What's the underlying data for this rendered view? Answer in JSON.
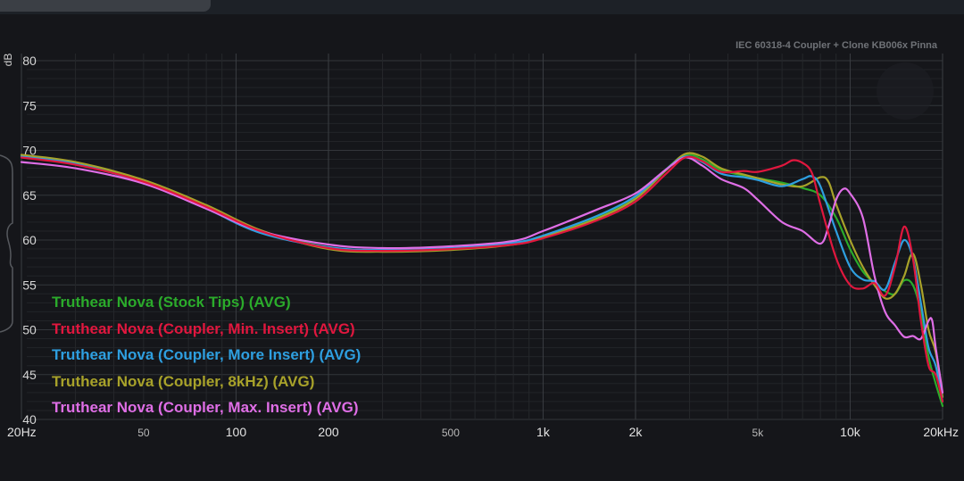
{
  "chart_data": {
    "type": "line",
    "title": "IEC 60318-4 Coupler + Clone KB006x Pinna",
    "ylabel": "dB",
    "xlabel": "",
    "x_scale": "log",
    "xlim": [
      20,
      20000
    ],
    "ylim": [
      40,
      80
    ],
    "grid": true,
    "legend_position": "bottom-left",
    "x_ticks": [
      {
        "value": 20,
        "label": "20Hz"
      },
      {
        "value": 50,
        "label": "50"
      },
      {
        "value": 100,
        "label": "100"
      },
      {
        "value": 200,
        "label": "200"
      },
      {
        "value": 500,
        "label": "500"
      },
      {
        "value": 1000,
        "label": "1k"
      },
      {
        "value": 2000,
        "label": "2k"
      },
      {
        "value": 5000,
        "label": "5k"
      },
      {
        "value": 10000,
        "label": "10k"
      },
      {
        "value": 20000,
        "label": "20kHz"
      }
    ],
    "y_ticks": [
      80,
      75,
      70,
      65,
      60,
      55,
      50,
      45,
      40
    ],
    "series": [
      {
        "name": "Truthear Nova (Stock Tips) (AVG)",
        "color": "#2bab2b",
        "points": [
          [
            20,
            69.4
          ],
          [
            30,
            68.6
          ],
          [
            50,
            66.6
          ],
          [
            80,
            63.8
          ],
          [
            120,
            61.0
          ],
          [
            200,
            59.2
          ],
          [
            300,
            58.8
          ],
          [
            500,
            59.0
          ],
          [
            800,
            59.6
          ],
          [
            1000,
            60.4
          ],
          [
            1500,
            62.6
          ],
          [
            2000,
            64.8
          ],
          [
            2500,
            67.8
          ],
          [
            2900,
            69.5
          ],
          [
            3300,
            69.0
          ],
          [
            3800,
            67.8
          ],
          [
            4500,
            67.2
          ],
          [
            5000,
            66.9
          ],
          [
            6000,
            66.4
          ],
          [
            7000,
            65.8
          ],
          [
            8000,
            65.0
          ],
          [
            9000,
            62.5
          ],
          [
            10000,
            59.0
          ],
          [
            11000,
            56.5
          ],
          [
            12000,
            55.2
          ],
          [
            13000,
            54.3
          ],
          [
            14000,
            54.0
          ],
          [
            15000,
            55.5
          ],
          [
            16000,
            55.0
          ],
          [
            17000,
            52.0
          ],
          [
            18000,
            47.0
          ],
          [
            19000,
            44.0
          ],
          [
            20000,
            41.5
          ]
        ]
      },
      {
        "name": "Truthear Nova (Coupler, Min. Insert) (AVG)",
        "color": "#e0173e",
        "points": [
          [
            20,
            69.2
          ],
          [
            30,
            68.4
          ],
          [
            50,
            66.5
          ],
          [
            80,
            63.7
          ],
          [
            120,
            61.0
          ],
          [
            200,
            59.1
          ],
          [
            300,
            58.8
          ],
          [
            500,
            59.0
          ],
          [
            800,
            59.5
          ],
          [
            1000,
            60.2
          ],
          [
            1500,
            62.2
          ],
          [
            2000,
            64.3
          ],
          [
            2500,
            67.3
          ],
          [
            2900,
            69.2
          ],
          [
            3300,
            68.8
          ],
          [
            3800,
            67.6
          ],
          [
            4500,
            67.7
          ],
          [
            5000,
            67.6
          ],
          [
            6000,
            68.3
          ],
          [
            6500,
            68.9
          ],
          [
            7000,
            68.6
          ],
          [
            7500,
            67.5
          ],
          [
            8000,
            64.0
          ],
          [
            9000,
            58.0
          ],
          [
            10000,
            55.0
          ],
          [
            11000,
            54.6
          ],
          [
            12000,
            55.2
          ],
          [
            13000,
            53.8
          ],
          [
            14000,
            57.0
          ],
          [
            15000,
            61.5
          ],
          [
            16000,
            58.0
          ],
          [
            17000,
            51.0
          ],
          [
            18000,
            46.0
          ],
          [
            19000,
            45.0
          ],
          [
            20000,
            42.0
          ]
        ]
      },
      {
        "name": "Truthear Nova (Coupler, More Insert) (AVG)",
        "color": "#2e9fe0",
        "points": [
          [
            20,
            69.3
          ],
          [
            30,
            68.5
          ],
          [
            50,
            66.4
          ],
          [
            80,
            63.5
          ],
          [
            120,
            60.8
          ],
          [
            200,
            59.2
          ],
          [
            300,
            58.9
          ],
          [
            500,
            59.1
          ],
          [
            800,
            59.7
          ],
          [
            1000,
            60.5
          ],
          [
            1500,
            62.7
          ],
          [
            2000,
            64.9
          ],
          [
            2500,
            67.8
          ],
          [
            2900,
            69.3
          ],
          [
            3300,
            68.7
          ],
          [
            3800,
            67.4
          ],
          [
            4500,
            67.0
          ],
          [
            5000,
            66.7
          ],
          [
            6000,
            66.0
          ],
          [
            7000,
            66.8
          ],
          [
            7500,
            67.1
          ],
          [
            8000,
            66.0
          ],
          [
            9000,
            61.0
          ],
          [
            10000,
            57.0
          ],
          [
            11000,
            55.6
          ],
          [
            12000,
            55.4
          ],
          [
            13000,
            54.5
          ],
          [
            14000,
            57.5
          ],
          [
            15000,
            60.0
          ],
          [
            16000,
            58.0
          ],
          [
            17000,
            53.0
          ],
          [
            18000,
            48.0
          ],
          [
            19000,
            46.0
          ],
          [
            20000,
            42.0
          ]
        ]
      },
      {
        "name": "Truthear Nova (Coupler, 8kHz) (AVG)",
        "color": "#a8a22a",
        "points": [
          [
            20,
            69.5
          ],
          [
            30,
            68.7
          ],
          [
            50,
            66.7
          ],
          [
            80,
            63.9
          ],
          [
            120,
            61.1
          ],
          [
            200,
            59.0
          ],
          [
            300,
            58.7
          ],
          [
            500,
            58.9
          ],
          [
            800,
            59.5
          ],
          [
            1000,
            60.3
          ],
          [
            1500,
            62.4
          ],
          [
            2000,
            64.6
          ],
          [
            2500,
            67.7
          ],
          [
            2900,
            69.6
          ],
          [
            3300,
            69.3
          ],
          [
            3800,
            68.0
          ],
          [
            4500,
            67.3
          ],
          [
            5000,
            66.9
          ],
          [
            6000,
            66.2
          ],
          [
            7000,
            66.0
          ],
          [
            8000,
            67.0
          ],
          [
            8500,
            66.5
          ],
          [
            9000,
            64.0
          ],
          [
            10000,
            60.0
          ],
          [
            11000,
            57.0
          ],
          [
            12000,
            55.0
          ],
          [
            13000,
            53.5
          ],
          [
            14000,
            54.0
          ],
          [
            15000,
            56.0
          ],
          [
            16000,
            58.5
          ],
          [
            17000,
            55.0
          ],
          [
            18000,
            50.0
          ],
          [
            19000,
            47.5
          ],
          [
            20000,
            42.5
          ]
        ]
      },
      {
        "name": "Truthear Nova (Coupler, Max. Insert) (AVG)",
        "color": "#df6ee6",
        "points": [
          [
            20,
            68.7
          ],
          [
            30,
            68.0
          ],
          [
            50,
            66.3
          ],
          [
            80,
            63.5
          ],
          [
            120,
            61.0
          ],
          [
            200,
            59.5
          ],
          [
            300,
            59.1
          ],
          [
            500,
            59.3
          ],
          [
            800,
            59.9
          ],
          [
            1000,
            61.0
          ],
          [
            1500,
            63.4
          ],
          [
            2000,
            65.2
          ],
          [
            2500,
            67.8
          ],
          [
            2900,
            69.2
          ],
          [
            3300,
            68.3
          ],
          [
            3800,
            66.8
          ],
          [
            4500,
            65.8
          ],
          [
            5000,
            64.5
          ],
          [
            6000,
            62.0
          ],
          [
            7000,
            61.0
          ],
          [
            8000,
            59.6
          ],
          [
            8500,
            61.5
          ],
          [
            9000,
            64.5
          ],
          [
            9500,
            65.7
          ],
          [
            10000,
            65.2
          ],
          [
            11000,
            62.5
          ],
          [
            12000,
            56.0
          ],
          [
            13000,
            52.0
          ],
          [
            14000,
            50.5
          ],
          [
            15000,
            49.2
          ],
          [
            16000,
            49.3
          ],
          [
            17000,
            49.0
          ],
          [
            18000,
            51.0
          ],
          [
            18500,
            51.0
          ],
          [
            19000,
            48.0
          ],
          [
            20000,
            43.0
          ]
        ]
      }
    ]
  }
}
